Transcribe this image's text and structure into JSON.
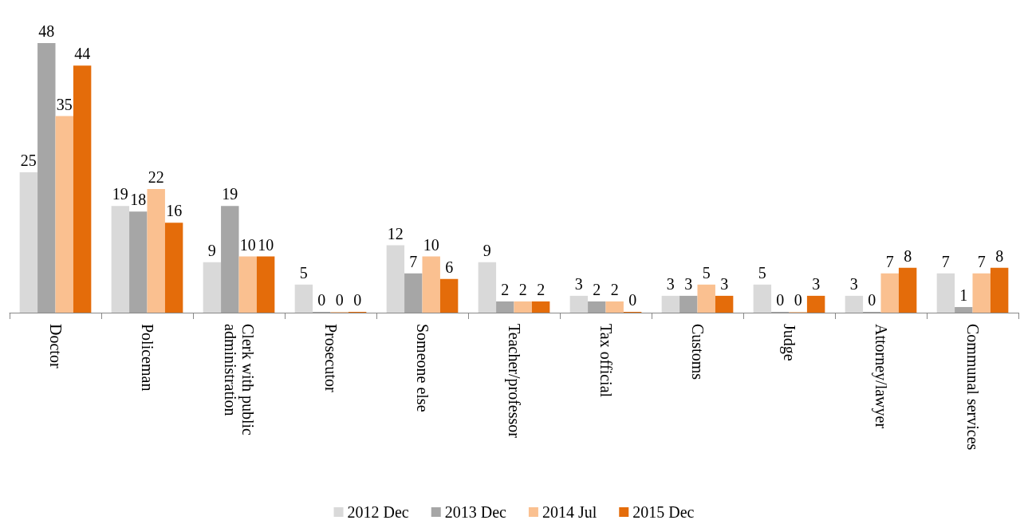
{
  "chart_data": {
    "type": "bar",
    "categories": [
      "Doctor",
      "Policeman",
      "Clerk with public administration",
      "Prosecutor",
      "Someone else",
      "Teacher/professor",
      "Tax official",
      "Customs",
      "Judge",
      "Attorney/lawyer",
      "Communal services"
    ],
    "series": [
      {
        "name": "2012 Dec",
        "color": "#d9d9d9",
        "values": [
          25,
          19,
          9,
          5,
          12,
          9,
          3,
          3,
          5,
          3,
          7
        ]
      },
      {
        "name": "2013 Dec",
        "color": "#a6a6a6",
        "values": [
          48,
          18,
          19,
          0,
          7,
          2,
          2,
          3,
          0,
          0,
          1
        ]
      },
      {
        "name": "2014 Jul",
        "color": "#fac090",
        "values": [
          35,
          22,
          10,
          0,
          10,
          2,
          2,
          5,
          0,
          7,
          7
        ]
      },
      {
        "name": "2015 Dec",
        "color": "#e46c0a",
        "values": [
          44,
          16,
          10,
          0,
          6,
          2,
          0,
          3,
          3,
          8,
          8
        ]
      }
    ],
    "data_labels": true,
    "legend": "bottom"
  }
}
